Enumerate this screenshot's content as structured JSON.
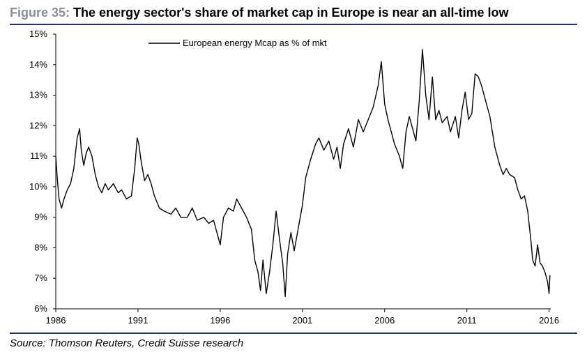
{
  "figure": {
    "label": "Figure 35:",
    "title": "The energy sector's share of market cap in Europe is near an all-time low",
    "source": "Source: Thomson Reuters, Credit Suisse research"
  },
  "chart_data": {
    "type": "line",
    "title": "The energy sector's share of market cap in Europe is near an all-time low",
    "xlabel": "",
    "ylabel": "",
    "xlim": [
      1986,
      2016.1
    ],
    "ylim": [
      6,
      15
    ],
    "x_ticks": [
      1986,
      1991,
      1996,
      2001,
      2006,
      2011,
      2016
    ],
    "y_ticks": [
      6,
      7,
      8,
      9,
      10,
      11,
      12,
      13,
      14,
      15
    ],
    "y_tick_labels": [
      "6%",
      "7%",
      "8%",
      "9%",
      "10%",
      "11%",
      "12%",
      "13%",
      "14%",
      "15%"
    ],
    "grid": false,
    "legend": "top-left",
    "color": "#000000",
    "series": [
      {
        "name": "European energy Mcap as % of mkt",
        "x": [
          1986.0,
          1986.1,
          1986.2,
          1986.35,
          1986.5,
          1986.7,
          1986.9,
          1987.1,
          1987.3,
          1987.45,
          1987.55,
          1987.7,
          1987.85,
          1988.0,
          1988.2,
          1988.4,
          1988.6,
          1988.8,
          1989.0,
          1989.2,
          1989.5,
          1989.8,
          1990.0,
          1990.3,
          1990.6,
          1990.8,
          1990.95,
          1991.05,
          1991.2,
          1991.4,
          1991.6,
          1991.8,
          1992.0,
          1992.3,
          1992.6,
          1993.0,
          1993.3,
          1993.6,
          1994.0,
          1994.3,
          1994.6,
          1995.0,
          1995.3,
          1995.6,
          1995.85,
          1996.0,
          1996.2,
          1996.5,
          1996.8,
          1997.0,
          1997.3,
          1997.6,
          1997.9,
          1998.1,
          1998.3,
          1998.45,
          1998.6,
          1998.8,
          1999.0,
          1999.2,
          1999.4,
          1999.6,
          1999.8,
          1999.95,
          2000.1,
          2000.3,
          2000.5,
          2000.8,
          2001.0,
          2001.2,
          2001.5,
          2001.8,
          2002.0,
          2002.3,
          2002.6,
          2002.9,
          2003.1,
          2003.3,
          2003.5,
          2003.8,
          2004.1,
          2004.4,
          2004.7,
          2005.0,
          2005.3,
          2005.6,
          2005.8,
          2006.0,
          2006.2,
          2006.4,
          2006.6,
          2006.9,
          2007.1,
          2007.3,
          2007.5,
          2007.7,
          2007.9,
          2008.1,
          2008.3,
          2008.5,
          2008.7,
          2008.9,
          2009.1,
          2009.3,
          2009.5,
          2009.8,
          2010.0,
          2010.3,
          2010.5,
          2010.7,
          2010.9,
          2011.1,
          2011.3,
          2011.5,
          2011.7,
          2011.9,
          2012.1,
          2012.4,
          2012.7,
          2013.0,
          2013.2,
          2013.4,
          2013.6,
          2013.9,
          2014.1,
          2014.3,
          2014.5,
          2014.7,
          2014.9,
          2015.0,
          2015.15,
          2015.3,
          2015.45,
          2015.6,
          2015.75,
          2015.9,
          2016.0,
          2016.05
        ],
        "values": [
          11.0,
          10.2,
          9.6,
          9.3,
          9.6,
          9.9,
          10.1,
          10.6,
          11.6,
          11.9,
          11.2,
          10.7,
          11.1,
          11.3,
          11.0,
          10.4,
          10.0,
          9.8,
          10.1,
          9.9,
          10.1,
          9.8,
          9.9,
          9.6,
          9.7,
          10.6,
          11.6,
          11.4,
          10.8,
          10.2,
          10.4,
          10.1,
          9.7,
          9.3,
          9.2,
          9.1,
          9.3,
          9.0,
          9.0,
          9.3,
          8.9,
          9.0,
          8.8,
          8.9,
          8.4,
          8.1,
          9.0,
          9.3,
          9.2,
          9.6,
          9.3,
          9.0,
          8.6,
          7.6,
          7.2,
          6.6,
          7.6,
          6.5,
          7.2,
          8.1,
          9.2,
          8.3,
          7.5,
          6.4,
          7.8,
          8.5,
          7.9,
          8.8,
          9.4,
          10.3,
          10.9,
          11.4,
          11.6,
          11.2,
          11.5,
          10.9,
          11.3,
          10.6,
          11.4,
          11.9,
          11.3,
          12.2,
          11.8,
          12.2,
          12.6,
          13.3,
          14.1,
          12.7,
          12.2,
          11.8,
          11.4,
          11.0,
          10.6,
          11.8,
          12.3,
          11.9,
          11.5,
          12.8,
          14.5,
          13.0,
          12.2,
          13.6,
          12.2,
          12.5,
          12.1,
          12.3,
          11.8,
          12.3,
          11.6,
          12.5,
          13.1,
          12.2,
          12.4,
          13.7,
          13.6,
          13.3,
          12.9,
          12.3,
          11.3,
          10.7,
          10.4,
          10.6,
          10.4,
          10.3,
          9.9,
          9.6,
          9.7,
          9.2,
          8.2,
          7.6,
          7.4,
          8.1,
          7.5,
          7.4,
          7.2,
          6.9,
          6.5,
          7.1
        ]
      }
    ]
  }
}
